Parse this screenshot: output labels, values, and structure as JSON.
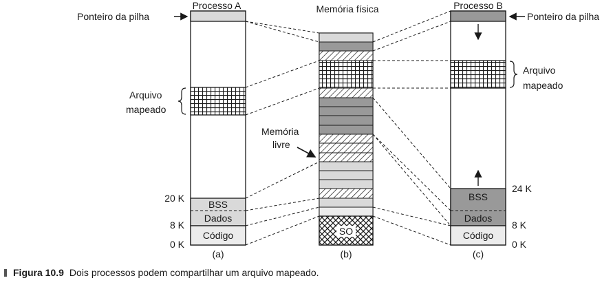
{
  "diagram": {
    "process_a_title": "Processo A",
    "process_b_title": "Processo B",
    "physical_memory_title": "Memória física",
    "stack_pointer_label": "Ponteiro da pilha",
    "mapped_file_line1": "Arquivo",
    "mapped_file_line2": "mapeado",
    "free_memory_line1": "Memória",
    "free_memory_line2": "livre",
    "bss_label": "BSS",
    "data_label": "Dados",
    "code_label": "Código",
    "os_label": "SO",
    "addr_20k": "20 K",
    "addr_8k": "8 K",
    "addr_0k": "0 K",
    "addr_24k": "24 K",
    "sub_a": "(a)",
    "sub_b": "(b)",
    "sub_c": "(c)"
  },
  "caption": {
    "figure_number": "Figura 10.9",
    "text": "Dois processos podem compartilhar um arquivo mapeado."
  },
  "colors": {
    "light_gray": "#d9d9d9",
    "dark_gray": "#999999",
    "very_light": "#ececec",
    "stroke": "#1a1a1a"
  }
}
